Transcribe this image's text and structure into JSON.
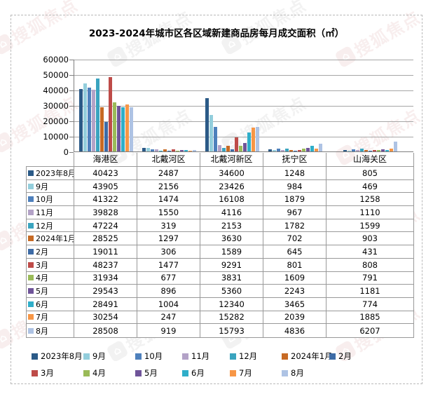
{
  "title": "2023-2024年城市区各区域新建商品房每月成交面积（㎡）",
  "watermark": {
    "text": "搜狐焦点",
    "icon": "sohu-focus-house-logo"
  },
  "chart_data": {
    "type": "bar",
    "title": "2023-2024年城市区各区域新建商品房每月成交面积（㎡）",
    "categories": [
      "海港区",
      "北戴河区",
      "北戴河新区",
      "抚宁区",
      "山海关区"
    ],
    "series": [
      {
        "name": "2023年8月",
        "color": "#2B5A87",
        "values": [
          40423,
          2487,
          34600,
          1248,
          805
        ]
      },
      {
        "name": "9月",
        "color": "#93CEDC",
        "values": [
          43905,
          2156,
          23426,
          984,
          469
        ]
      },
      {
        "name": "10月",
        "color": "#4E80BC",
        "values": [
          41322,
          1474,
          16108,
          1879,
          1258
        ]
      },
      {
        "name": "11月",
        "color": "#B3A2C7",
        "values": [
          39828,
          1550,
          4116,
          967,
          1110
        ]
      },
      {
        "name": "12月",
        "color": "#3AA4BF",
        "values": [
          47224,
          319,
          2153,
          1782,
          1599
        ]
      },
      {
        "name": "2024年1月",
        "color": "#C76A24",
        "values": [
          28525,
          1297,
          3630,
          702,
          903
        ]
      },
      {
        "name": "2月",
        "color": "#3D6BA6",
        "values": [
          19011,
          306,
          1589,
          645,
          431
        ]
      },
      {
        "name": "3月",
        "color": "#BE4B48",
        "values": [
          48237,
          1477,
          9291,
          801,
          808
        ]
      },
      {
        "name": "4月",
        "color": "#9ABB58",
        "values": [
          31934,
          677,
          3831,
          1609,
          791
        ]
      },
      {
        "name": "5月",
        "color": "#6F5499",
        "values": [
          29543,
          896,
          5360,
          2243,
          1181
        ]
      },
      {
        "name": "6月",
        "color": "#2FAEC9",
        "values": [
          28491,
          1004,
          12340,
          3465,
          774
        ]
      },
      {
        "name": "7月",
        "color": "#F79646",
        "values": [
          30254,
          247,
          15282,
          2039,
          1885
        ]
      },
      {
        "name": "8月",
        "color": "#AEC3E4",
        "values": [
          28508,
          919,
          15793,
          4836,
          6207
        ]
      }
    ],
    "ylim": [
      0,
      60000
    ],
    "yticks": [
      60000,
      50000,
      40000,
      30000,
      20000,
      10000,
      0
    ],
    "grid": true,
    "legend_position": "bottom",
    "data_table_shown": true
  }
}
